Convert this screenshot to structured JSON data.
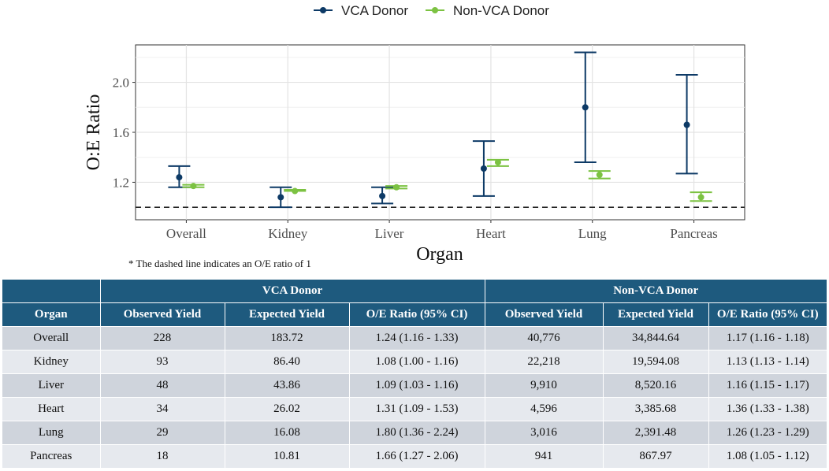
{
  "chart_data": {
    "type": "errorbar",
    "categories": [
      "Overall",
      "Kidney",
      "Liver",
      "Heart",
      "Lung",
      "Pancreas"
    ],
    "series": [
      {
        "name": "VCA Donor",
        "color": "#0d3a66",
        "values": [
          1.24,
          1.08,
          1.09,
          1.31,
          1.8,
          1.66
        ],
        "lower": [
          1.16,
          1.0,
          1.03,
          1.09,
          1.36,
          1.27
        ],
        "upper": [
          1.33,
          1.16,
          1.16,
          1.53,
          2.24,
          2.06
        ]
      },
      {
        "name": "Non-VCA Donor",
        "color": "#7cc242",
        "values": [
          1.17,
          1.13,
          1.16,
          1.36,
          1.26,
          1.08
        ],
        "lower": [
          1.16,
          1.13,
          1.15,
          1.33,
          1.23,
          1.05
        ],
        "upper": [
          1.18,
          1.14,
          1.17,
          1.38,
          1.29,
          1.12
        ]
      }
    ],
    "xlabel": "Organ",
    "ylabel": "O:E Ratio",
    "ylim": [
      0.9,
      2.3
    ],
    "yticks": [
      1.2,
      1.6,
      2.0
    ],
    "reference_line": 1.0,
    "legend_position": "top-center",
    "note": "* The dashed line indicates an O/E ratio of 1"
  },
  "table": {
    "group_headers": [
      "VCA Donor",
      "Non-VCA Donor"
    ],
    "columns": [
      "Organ",
      "Observed Yield",
      "Expected Yield",
      "O/E Ratio (95% CI)",
      "Observed Yield",
      "Expected Yield",
      "O/E Ratio (95% CI)"
    ],
    "rows": [
      [
        "Overall",
        "228",
        "183.72",
        "1.24 (1.16 - 1.33)",
        "40,776",
        "34,844.64",
        "1.17 (1.16 - 1.18)"
      ],
      [
        "Kidney",
        "93",
        "86.40",
        "1.08 (1.00 - 1.16)",
        "22,218",
        "19,594.08",
        "1.13 (1.13 - 1.14)"
      ],
      [
        "Liver",
        "48",
        "43.86",
        "1.09 (1.03 - 1.16)",
        "9,910",
        "8,520.16",
        "1.16 (1.15 - 1.17)"
      ],
      [
        "Heart",
        "34",
        "26.02",
        "1.31 (1.09 - 1.53)",
        "4,596",
        "3,385.68",
        "1.36 (1.33 - 1.38)"
      ],
      [
        "Lung",
        "29",
        "16.08",
        "1.80 (1.36 - 2.24)",
        "3,016",
        "2,391.48",
        "1.26 (1.23 - 1.29)"
      ],
      [
        "Pancreas",
        "18",
        "10.81",
        "1.66 (1.27 - 2.06)",
        "941",
        "867.97",
        "1.08 (1.05 - 1.12)"
      ]
    ]
  }
}
